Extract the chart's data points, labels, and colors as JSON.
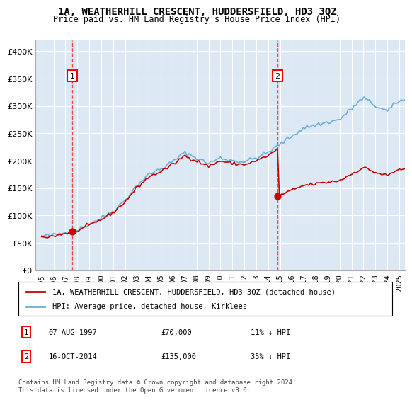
{
  "title": "1A, WEATHERHILL CRESCENT, HUDDERSFIELD, HD3 3QZ",
  "subtitle": "Price paid vs. HM Land Registry's House Price Index (HPI)",
  "legend_line1": "1A, WEATHERHILL CRESCENT, HUDDERSFIELD, HD3 3QZ (detached house)",
  "legend_line2": "HPI: Average price, detached house, Kirklees",
  "annotation1": {
    "label": "1",
    "date": "07-AUG-1997",
    "price": "£70,000",
    "pct": "11% ↓ HPI",
    "x_year": 1997.6
  },
  "annotation2": {
    "label": "2",
    "date": "16-OCT-2014",
    "price": "£135,000",
    "pct": "35% ↓ HPI",
    "x_year": 2014.8
  },
  "footer": "Contains HM Land Registry data © Crown copyright and database right 2024.\nThis data is licensed under the Open Government Licence v3.0.",
  "hpi_color": "#6aaed6",
  "price_color": "#cc0000",
  "background_color": "#dce9f5",
  "plot_bg": "#dce9f5",
  "ylim": [
    0,
    420000
  ],
  "yticks": [
    0,
    50000,
    100000,
    150000,
    200000,
    250000,
    300000,
    350000,
    400000
  ],
  "ytick_labels": [
    "£0",
    "£50K",
    "£100K",
    "£150K",
    "£200K",
    "£250K",
    "£300K",
    "£350K",
    "£400K"
  ],
  "xlim_start": 1994.5,
  "xlim_end": 2025.5
}
